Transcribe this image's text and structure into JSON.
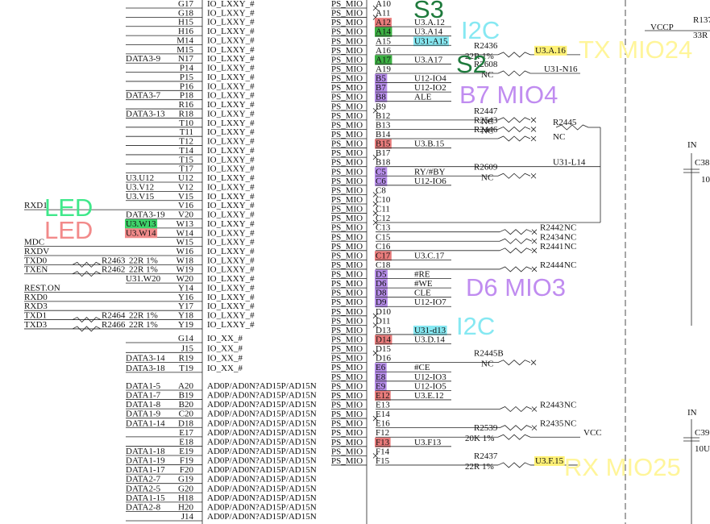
{
  "left_block": {
    "label": "IO_LXXY_#",
    "rows": [
      {
        "pin": "G17"
      },
      {
        "pin": "G18"
      },
      {
        "pin": "H15"
      },
      {
        "pin": "H16"
      },
      {
        "pin": "M14"
      },
      {
        "pin": "M15"
      },
      {
        "pin": "N17",
        "net": "DATA3-9"
      },
      {
        "pin": "P14"
      },
      {
        "pin": "P15"
      },
      {
        "pin": "P16"
      },
      {
        "pin": "P18",
        "net": "DATA3-7"
      },
      {
        "pin": "R16"
      },
      {
        "pin": "R18",
        "net": "DATA3-13"
      },
      {
        "pin": "T10"
      },
      {
        "pin": "T11"
      },
      {
        "pin": "T12"
      },
      {
        "pin": "T14"
      },
      {
        "pin": "T15"
      },
      {
        "pin": "T17"
      },
      {
        "pin": "U12",
        "net": "U3.U12"
      },
      {
        "pin": "V12",
        "net": "U3.V12"
      },
      {
        "pin": "V15",
        "net": "U3.V15"
      },
      {
        "pin": "V16",
        "far": "RXD1"
      },
      {
        "pin": "V20",
        "net": "DATA3-19"
      },
      {
        "pin": "W13",
        "net": "U3.W13",
        "highlight": "#3fd36a"
      },
      {
        "pin": "W14",
        "net": "U3.W14",
        "highlight": "#f08a8a"
      },
      {
        "pin": "W15",
        "far": "MDC"
      },
      {
        "pin": "W16",
        "far": "RXDV"
      },
      {
        "pin": "W18",
        "far": "TXD0",
        "res": "R2463",
        "value": "22R 1%"
      },
      {
        "pin": "W19",
        "far": "TXEN",
        "res": "R2462",
        "value": "22R 1%"
      },
      {
        "pin": "W20",
        "net": "U31.W20"
      },
      {
        "pin": "Y14",
        "far": "REST.ON"
      },
      {
        "pin": "Y16",
        "far": "RXD0"
      },
      {
        "pin": "Y17",
        "far": "RXD3"
      },
      {
        "pin": "Y18",
        "far": "TXD1",
        "res": "R2464",
        "value": "22R 1%"
      },
      {
        "pin": "Y19",
        "far": "TXD3",
        "res": "R2466",
        "value": "22R 1%"
      }
    ]
  },
  "xx_block": {
    "label": "IO_XX_#",
    "rows": [
      {
        "pin": "G14"
      },
      {
        "pin": "J15"
      },
      {
        "pin": "R19",
        "net": "DATA3-14"
      },
      {
        "pin": "T19",
        "net": "DATA3-18"
      }
    ]
  },
  "ad_block": {
    "label": "AD0P/AD0N?AD15P/AD15N",
    "rows": [
      {
        "pin": "A20",
        "net": "DATA1-5"
      },
      {
        "pin": "B19",
        "net": "DATA1-7"
      },
      {
        "pin": "B20",
        "net": "DATA1-8"
      },
      {
        "pin": "C20",
        "net": "DATA1-9"
      },
      {
        "pin": "D18",
        "net": "DATA1-14"
      },
      {
        "pin": "E17"
      },
      {
        "pin": "E18"
      },
      {
        "pin": "E19",
        "net": "DATA1-18"
      },
      {
        "pin": "F19",
        "net": "DATA1-19"
      },
      {
        "pin": "F20",
        "net": "DATA1-17"
      },
      {
        "pin": "G19",
        "net": "DATA2-7"
      },
      {
        "pin": "G20",
        "net": "DATA2-5"
      },
      {
        "pin": "H18",
        "net": "DATA1-15"
      },
      {
        "pin": "H20",
        "net": "DATA2-8"
      },
      {
        "pin": "J14"
      }
    ]
  },
  "ps_block": {
    "label": "PS_MIO",
    "rows": [
      {
        "pin": "A10"
      },
      {
        "pin": "A11"
      },
      {
        "pin": "A12",
        "net": "U3.A.12",
        "highlight": "#e87b7b"
      },
      {
        "pin": "A14",
        "net": "U3.A14",
        "highlight": "#3cb043"
      },
      {
        "pin": "A15",
        "net": "U31-A15",
        "net_highlight": "#86e8f2"
      },
      {
        "pin": "A16",
        "res": "R2436",
        "value": "22R 1%",
        "far": "U3.A.16",
        "far_highlight": "#fff176"
      },
      {
        "pin": "A17",
        "net": "U3.A17",
        "highlight": "#3cb043"
      },
      {
        "pin": "A19",
        "res": "R2608",
        "value": "NC",
        "far": "U31-N16"
      },
      {
        "pin": "B5",
        "net": "U12-IO4",
        "highlight": "#b58ce8"
      },
      {
        "pin": "B7",
        "net": "U12-IO2",
        "highlight": "#b58ce8"
      },
      {
        "pin": "B8",
        "net": "ALE",
        "highlight": "#b58ce8"
      },
      {
        "pin": "B9"
      },
      {
        "pin": "B12",
        "res": "R2447",
        "value": "NC"
      },
      {
        "pin": "B13",
        "res": "R2543",
        "value": "NC"
      },
      {
        "pin": "B14",
        "res": "R2446"
      },
      {
        "pin": "B15",
        "net": "U3.B.15",
        "highlight": "#e87b7b"
      },
      {
        "pin": "B17"
      },
      {
        "pin": "B18",
        "far": "U31-L14"
      },
      {
        "pin": "C5",
        "net": "RY/#BY",
        "highlight": "#b58ce8",
        "res": "R2609",
        "value": "NC"
      },
      {
        "pin": "C6",
        "net": "U12-IO6",
        "highlight": "#b58ce8"
      },
      {
        "pin": "C8"
      },
      {
        "pin": "C10"
      },
      {
        "pin": "C11"
      },
      {
        "pin": "C12"
      },
      {
        "pin": "C13",
        "res": "R2442",
        "value": "NC"
      },
      {
        "pin": "C15",
        "res": "R2434",
        "value": "NC"
      },
      {
        "pin": "C16",
        "res": "R2441",
        "value": "NC"
      },
      {
        "pin": "C17",
        "net": "U3.C.17",
        "highlight": "#e87b7b"
      },
      {
        "pin": "C18",
        "res": "R2444",
        "value": "NC"
      },
      {
        "pin": "D5",
        "net": "#RE",
        "highlight": "#b58ce8"
      },
      {
        "pin": "D6",
        "net": "#WE",
        "highlight": "#b58ce8"
      },
      {
        "pin": "D8",
        "net": "CLE",
        "highlight": "#b58ce8"
      },
      {
        "pin": "D9",
        "net": "U12-IO7",
        "highlight": "#b58ce8"
      },
      {
        "pin": "D10"
      },
      {
        "pin": "D11"
      },
      {
        "pin": "D13",
        "net": "U31-d13",
        "net_highlight": "#86e8f2"
      },
      {
        "pin": "D14",
        "net": "U3.D.14",
        "highlight": "#e87b7b"
      },
      {
        "pin": "D15"
      },
      {
        "pin": "D16",
        "res": "R2445B",
        "value": "NC"
      },
      {
        "pin": "E6",
        "net": "#CE",
        "highlight": "#b58ce8"
      },
      {
        "pin": "E8",
        "net": "U12-IO3",
        "highlight": "#b58ce8"
      },
      {
        "pin": "E9",
        "net": "U12-IO5",
        "highlight": "#b58ce8"
      },
      {
        "pin": "E12",
        "net": "U3.E.12",
        "highlight": "#e87b7b"
      },
      {
        "pin": "E13",
        "res": "R2443",
        "value": "NC"
      },
      {
        "pin": "E14"
      },
      {
        "pin": "E16",
        "res": "R2435",
        "value": "NC"
      },
      {
        "pin": "F12",
        "res": "R2539",
        "value": "20K 1%",
        "far": "VCC"
      },
      {
        "pin": "F13",
        "net": "U3.F13",
        "highlight": "#e87b7b"
      },
      {
        "pin": "F14"
      },
      {
        "pin": "F15",
        "res": "R2437",
        "value": "22R 1%",
        "far": "U3.F.15",
        "far_highlight": "#fff176"
      }
    ]
  },
  "extra_texts": [
    "R2445",
    "NC"
  ],
  "right_texts": [
    "VCCP",
    "R137",
    "33R",
    "IN",
    "C38",
    "10",
    "IN",
    "C39",
    "10U"
  ],
  "annotations": [
    {
      "text": "S3",
      "color": "#1e7a3c"
    },
    {
      "text": "I2C",
      "color": "#86e8f2"
    },
    {
      "text": "TX MIO24",
      "color": "#fff59a"
    },
    {
      "text": "S2",
      "color": "#1e7a3c"
    },
    {
      "text": "B7 MIO4",
      "color": "#c08cf0"
    },
    {
      "text": "D6 MIO3",
      "color": "#c08cf0"
    },
    {
      "text": "I2C",
      "color": "#86e8f2"
    },
    {
      "text": "RX MIO25",
      "color": "#fff59a"
    },
    {
      "text": "LED",
      "color": "#3fe88a"
    },
    {
      "text": "LED",
      "color": "#f28a8a"
    }
  ]
}
